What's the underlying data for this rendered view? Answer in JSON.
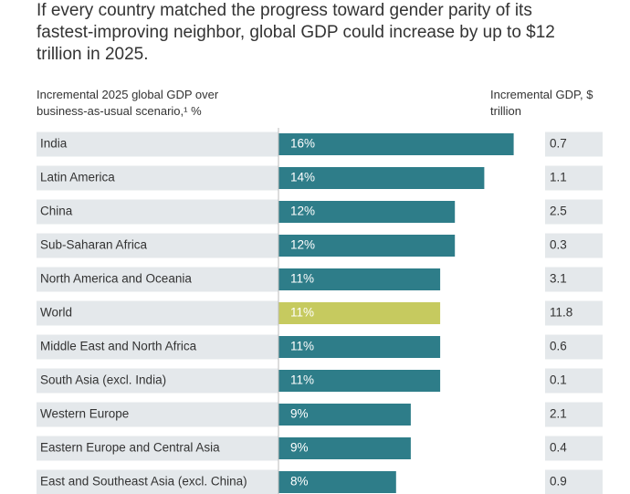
{
  "chart_data": {
    "type": "bar",
    "title": "If every country matched the progress toward gender parity of its fastest-improving neighbor, global GDP could increase by up to $12 trillion in 2025.",
    "value_header": "Incremental 2025 global GDP over business-as-usual scenario,¹ %",
    "table_header": "Incremental GDP, $ trillion",
    "categories": [
      "India",
      "Latin America",
      "China",
      "Sub-Saharan Africa",
      "North America and Oceania",
      "World",
      "Middle East and North Africa",
      "South Asia (excl. India)",
      "Western Europe",
      "Eastern Europe and Central Asia",
      "East and Southeast Asia (excl. China)"
    ],
    "values": [
      16,
      14,
      12,
      12,
      11,
      11,
      11,
      11,
      9,
      9,
      8
    ],
    "value_labels": [
      "16%",
      "14%",
      "12%",
      "12%",
      "11%",
      "11%",
      "11%",
      "11%",
      "9%",
      "9%",
      "8%"
    ],
    "colors": [
      "#2e7d89",
      "#2e7d89",
      "#2e7d89",
      "#2e7d89",
      "#2e7d89",
      "#c6ca5f",
      "#2e7d89",
      "#2e7d89",
      "#2e7d89",
      "#2e7d89",
      "#2e7d89"
    ],
    "table_values": [
      0.7,
      1.1,
      2.5,
      0.3,
      3.1,
      11.8,
      0.6,
      0.1,
      2.1,
      0.4,
      0.9
    ]
  }
}
